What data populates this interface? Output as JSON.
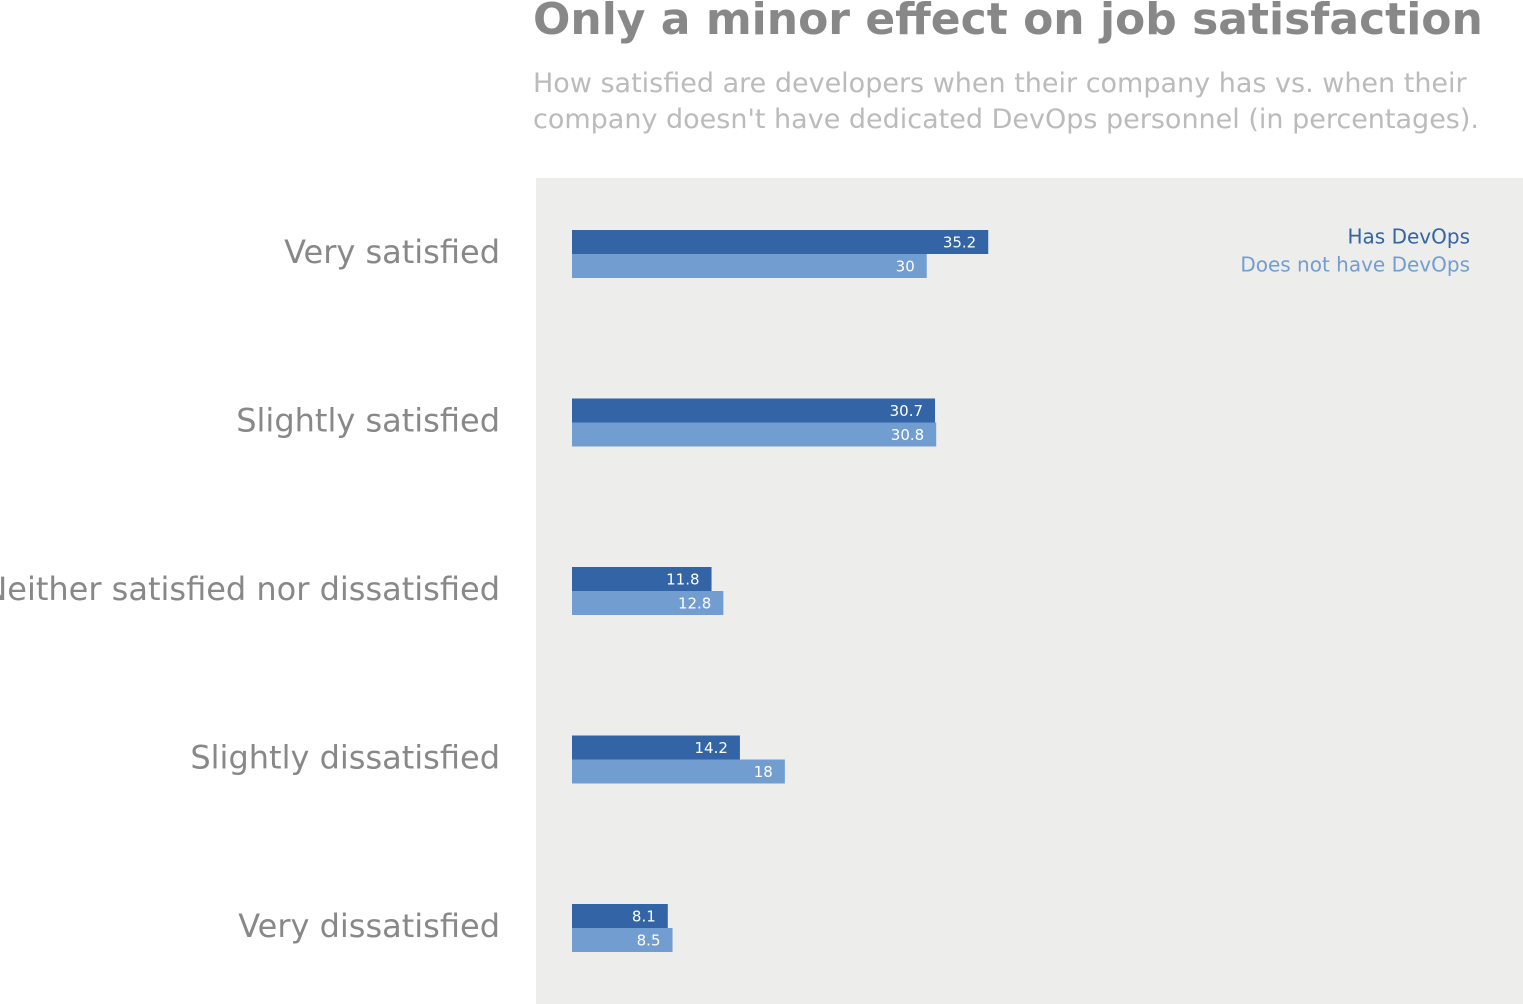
{
  "chart_data": {
    "type": "bar",
    "orientation": "horizontal",
    "title": "Only a minor effect on job satisfaction",
    "subtitle": "How satisfied are developers when their company has vs. when their company doesn't have dedicated DevOps personnel (in percentages).",
    "categories": [
      "Very satisfied",
      "Slightly satisfied",
      "Neither satisfied nor dissatisfied",
      "Slightly dissatisfied",
      "Very dissatisfied"
    ],
    "series": [
      {
        "name": "Has DevOps",
        "color": "#3264a6",
        "values": [
          35.2,
          30.7,
          11.8,
          14.2,
          8.1
        ]
      },
      {
        "name": "Does not have DevOps",
        "color": "#729dd1",
        "values": [
          30,
          30.8,
          12.8,
          18,
          8.5
        ]
      }
    ],
    "xlim": [
      0,
      80
    ],
    "legend": "top-right"
  }
}
